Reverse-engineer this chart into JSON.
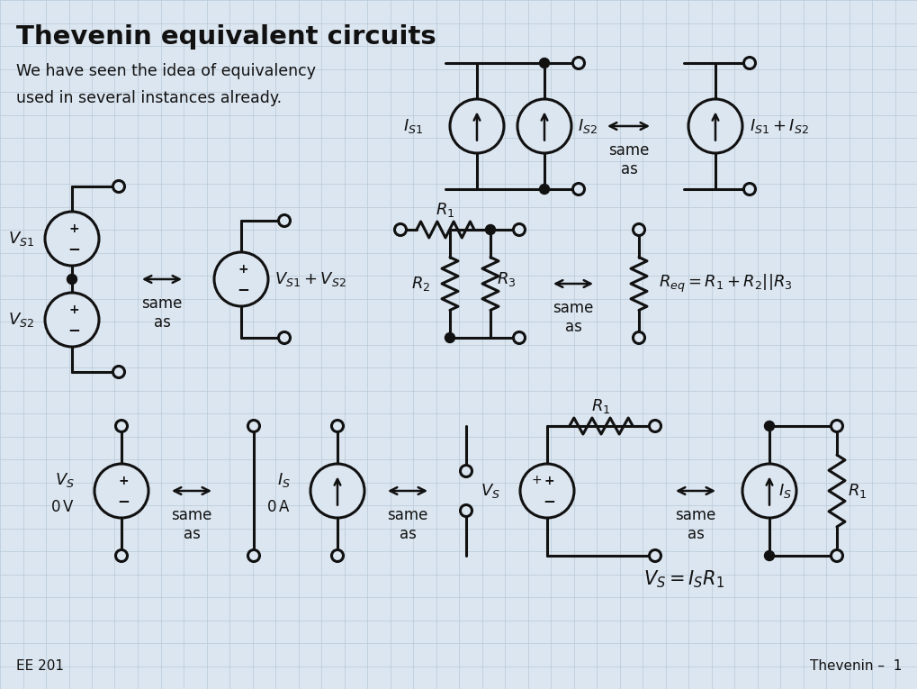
{
  "title": "Thevenin equivalent circuits",
  "subtitle_line1": "We have seen the idea of equivalency",
  "subtitle_line2": "used in several instances already.",
  "bg_color": "#dce6f0",
  "grid_color": "#b8c8d8",
  "text_color": "#111111",
  "footer_left": "EE 201",
  "footer_right": "Thevenin –  1"
}
